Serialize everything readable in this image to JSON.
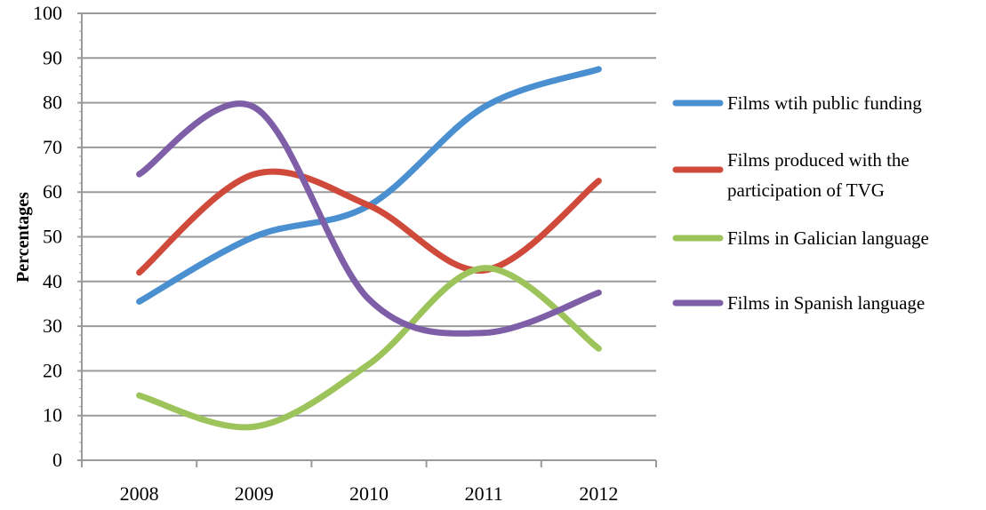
{
  "chart_data": {
    "type": "line",
    "title": "",
    "xlabel": "",
    "ylabel": "Percentages",
    "categories": [
      "2008",
      "2009",
      "2010",
      "2011",
      "2012"
    ],
    "ylim": [
      0,
      100
    ],
    "yticks": [
      "0",
      "10",
      "20",
      "30",
      "40",
      "50",
      "60",
      "70",
      "80",
      "90",
      "100"
    ],
    "grid": true,
    "legend_position": "right",
    "smooth": true,
    "series": [
      {
        "name": "Films wtih public funding",
        "legend_lines": [
          "Films wtih public funding"
        ],
        "color": "#4a8fd0",
        "values": [
          35.5,
          50,
          57,
          79,
          87.5
        ]
      },
      {
        "name": "Films produced with the participation of TVG",
        "legend_lines": [
          "Films produced with the",
          "participation of TVG"
        ],
        "color": "#d04a3c",
        "values": [
          42,
          64,
          57,
          42.5,
          62.5
        ]
      },
      {
        "name": "Films in Galician language",
        "legend_lines": [
          "Films in Galician language"
        ],
        "color": "#9dc35b",
        "values": [
          14.5,
          7.5,
          21.5,
          43,
          25
        ]
      },
      {
        "name": "Films in Spanish language",
        "legend_lines": [
          "Films in Spanish language"
        ],
        "color": "#7f5ea8",
        "values": [
          64,
          79,
          36,
          28.5,
          37.5
        ]
      }
    ]
  }
}
